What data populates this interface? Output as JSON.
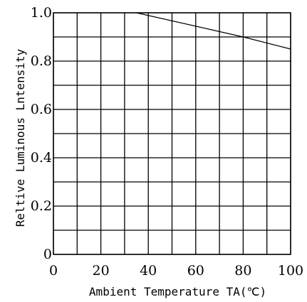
{
  "chart_data": {
    "type": "line",
    "title": "",
    "xlabel": "Ambient Temperature TA(℃)",
    "ylabel": "Reltive Luminous Lntensity",
    "xlim": [
      0,
      100
    ],
    "ylim": [
      0,
      1.0
    ],
    "x_ticks": [
      0,
      10,
      20,
      30,
      40,
      50,
      60,
      70,
      80,
      90,
      100
    ],
    "y_ticks": [
      0,
      0.1,
      0.2,
      0.3,
      0.4,
      0.5,
      0.6,
      0.7,
      0.8,
      0.9,
      1.0
    ],
    "x_tick_labels": [
      "0",
      "20",
      "40",
      "60",
      "80",
      "100"
    ],
    "y_tick_labels": [
      "0",
      "0.2",
      "0.4",
      "0.6",
      "0.8",
      "1.0"
    ],
    "grid": true,
    "legend": "none",
    "series": [
      {
        "color": "#000000",
        "x": [
          35,
          80,
          100
        ],
        "y": [
          1.0,
          0.9,
          0.85
        ]
      }
    ]
  }
}
